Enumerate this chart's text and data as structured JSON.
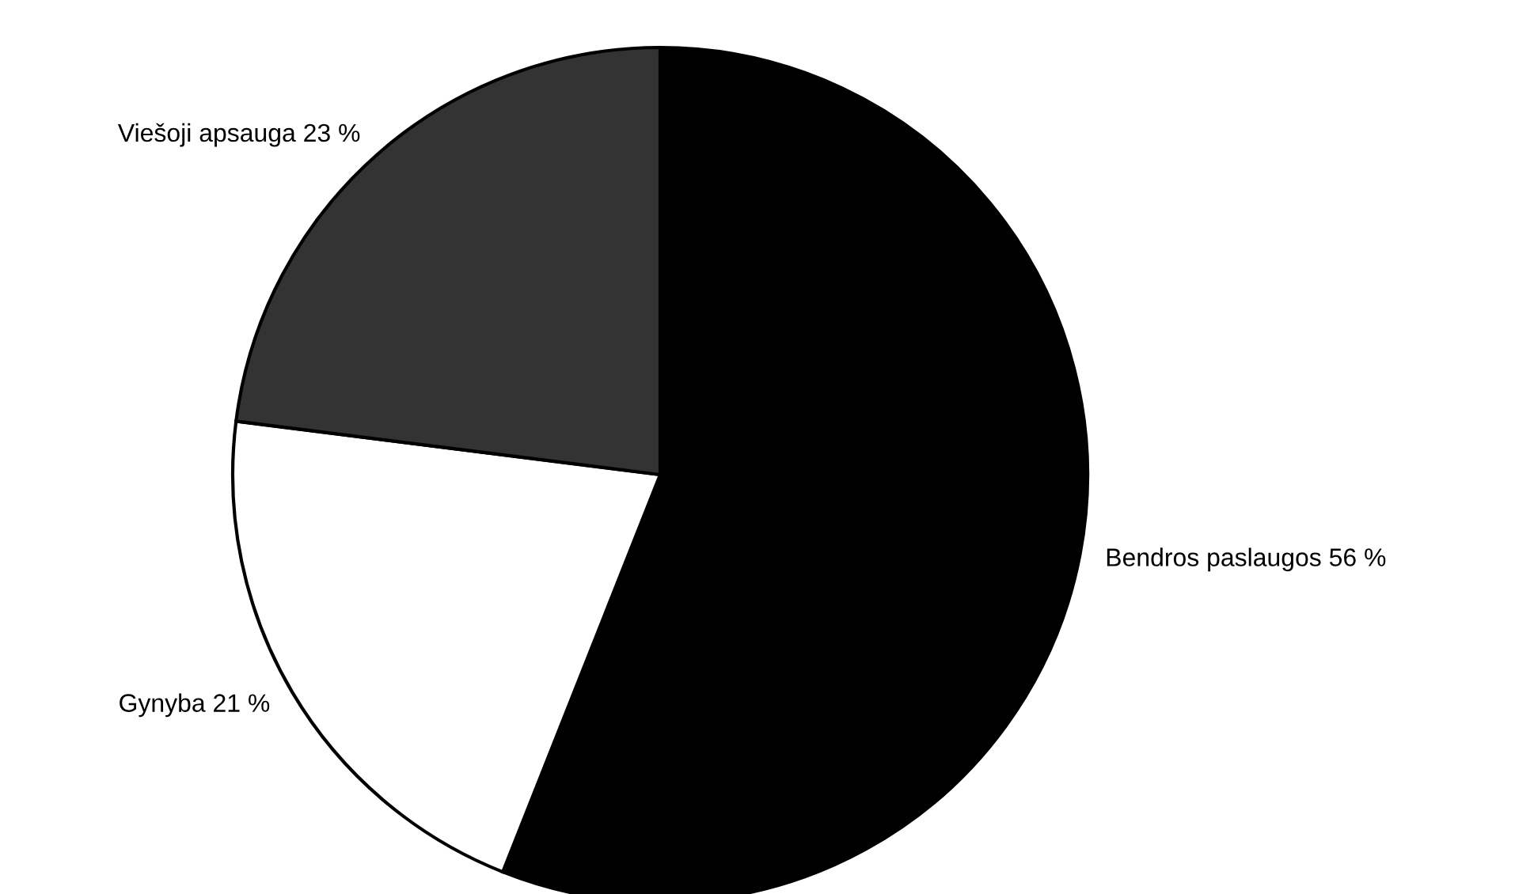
{
  "chart_data": {
    "type": "pie",
    "categories": [
      "Bendros paslaugos",
      "Gynyba",
      "Viešoji apsauga"
    ],
    "values": [
      56,
      21,
      23
    ],
    "value_labels": [
      "56 %",
      "21 %",
      "23 %"
    ],
    "colors": [
      "#000000",
      "#ffffff",
      "#333333"
    ],
    "legend": false
  }
}
